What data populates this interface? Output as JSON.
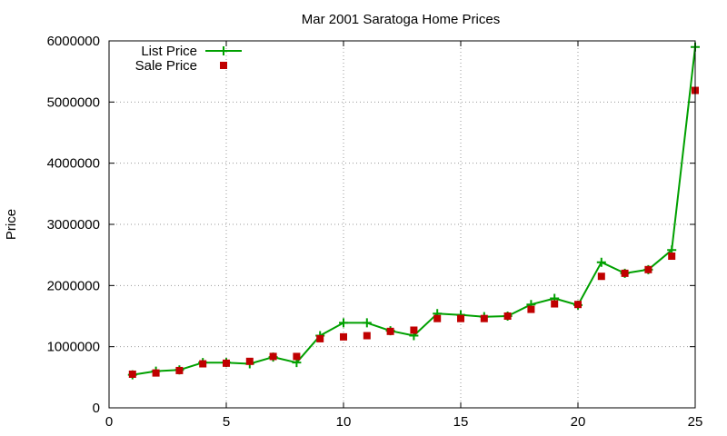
{
  "chart_data": {
    "type": "line",
    "title": "Mar 2001 Saratoga Home Prices",
    "xlabel": "",
    "ylabel": "Price",
    "xlim": [
      0,
      25
    ],
    "ylim": [
      0,
      6000000
    ],
    "x_ticks": [
      0,
      5,
      10,
      15,
      20,
      25
    ],
    "y_ticks": [
      0,
      1000000,
      2000000,
      3000000,
      4000000,
      5000000,
      6000000
    ],
    "grid": true,
    "legend_position": "top-left",
    "x": [
      1,
      2,
      3,
      4,
      5,
      6,
      7,
      8,
      9,
      10,
      11,
      12,
      13,
      14,
      15,
      16,
      17,
      18,
      19,
      20,
      21,
      22,
      23,
      24,
      25
    ],
    "series": [
      {
        "name": "List Price",
        "style": "lines+points",
        "marker": "plus",
        "color": "#00a000",
        "values": [
          540000,
          600000,
          620000,
          740000,
          740000,
          720000,
          830000,
          740000,
          1180000,
          1390000,
          1390000,
          1260000,
          1180000,
          1540000,
          1520000,
          1490000,
          1500000,
          1690000,
          1790000,
          1680000,
          2380000,
          2200000,
          2260000,
          2580000,
          5900000
        ]
      },
      {
        "name": "Sale Price",
        "style": "points",
        "marker": "square",
        "color": "#c00000",
        "values": [
          550000,
          570000,
          610000,
          720000,
          730000,
          760000,
          840000,
          840000,
          1130000,
          1160000,
          1180000,
          1250000,
          1270000,
          1460000,
          1460000,
          1460000,
          1500000,
          1610000,
          1700000,
          1690000,
          2150000,
          2200000,
          2260000,
          2480000,
          5190000
        ]
      }
    ]
  }
}
